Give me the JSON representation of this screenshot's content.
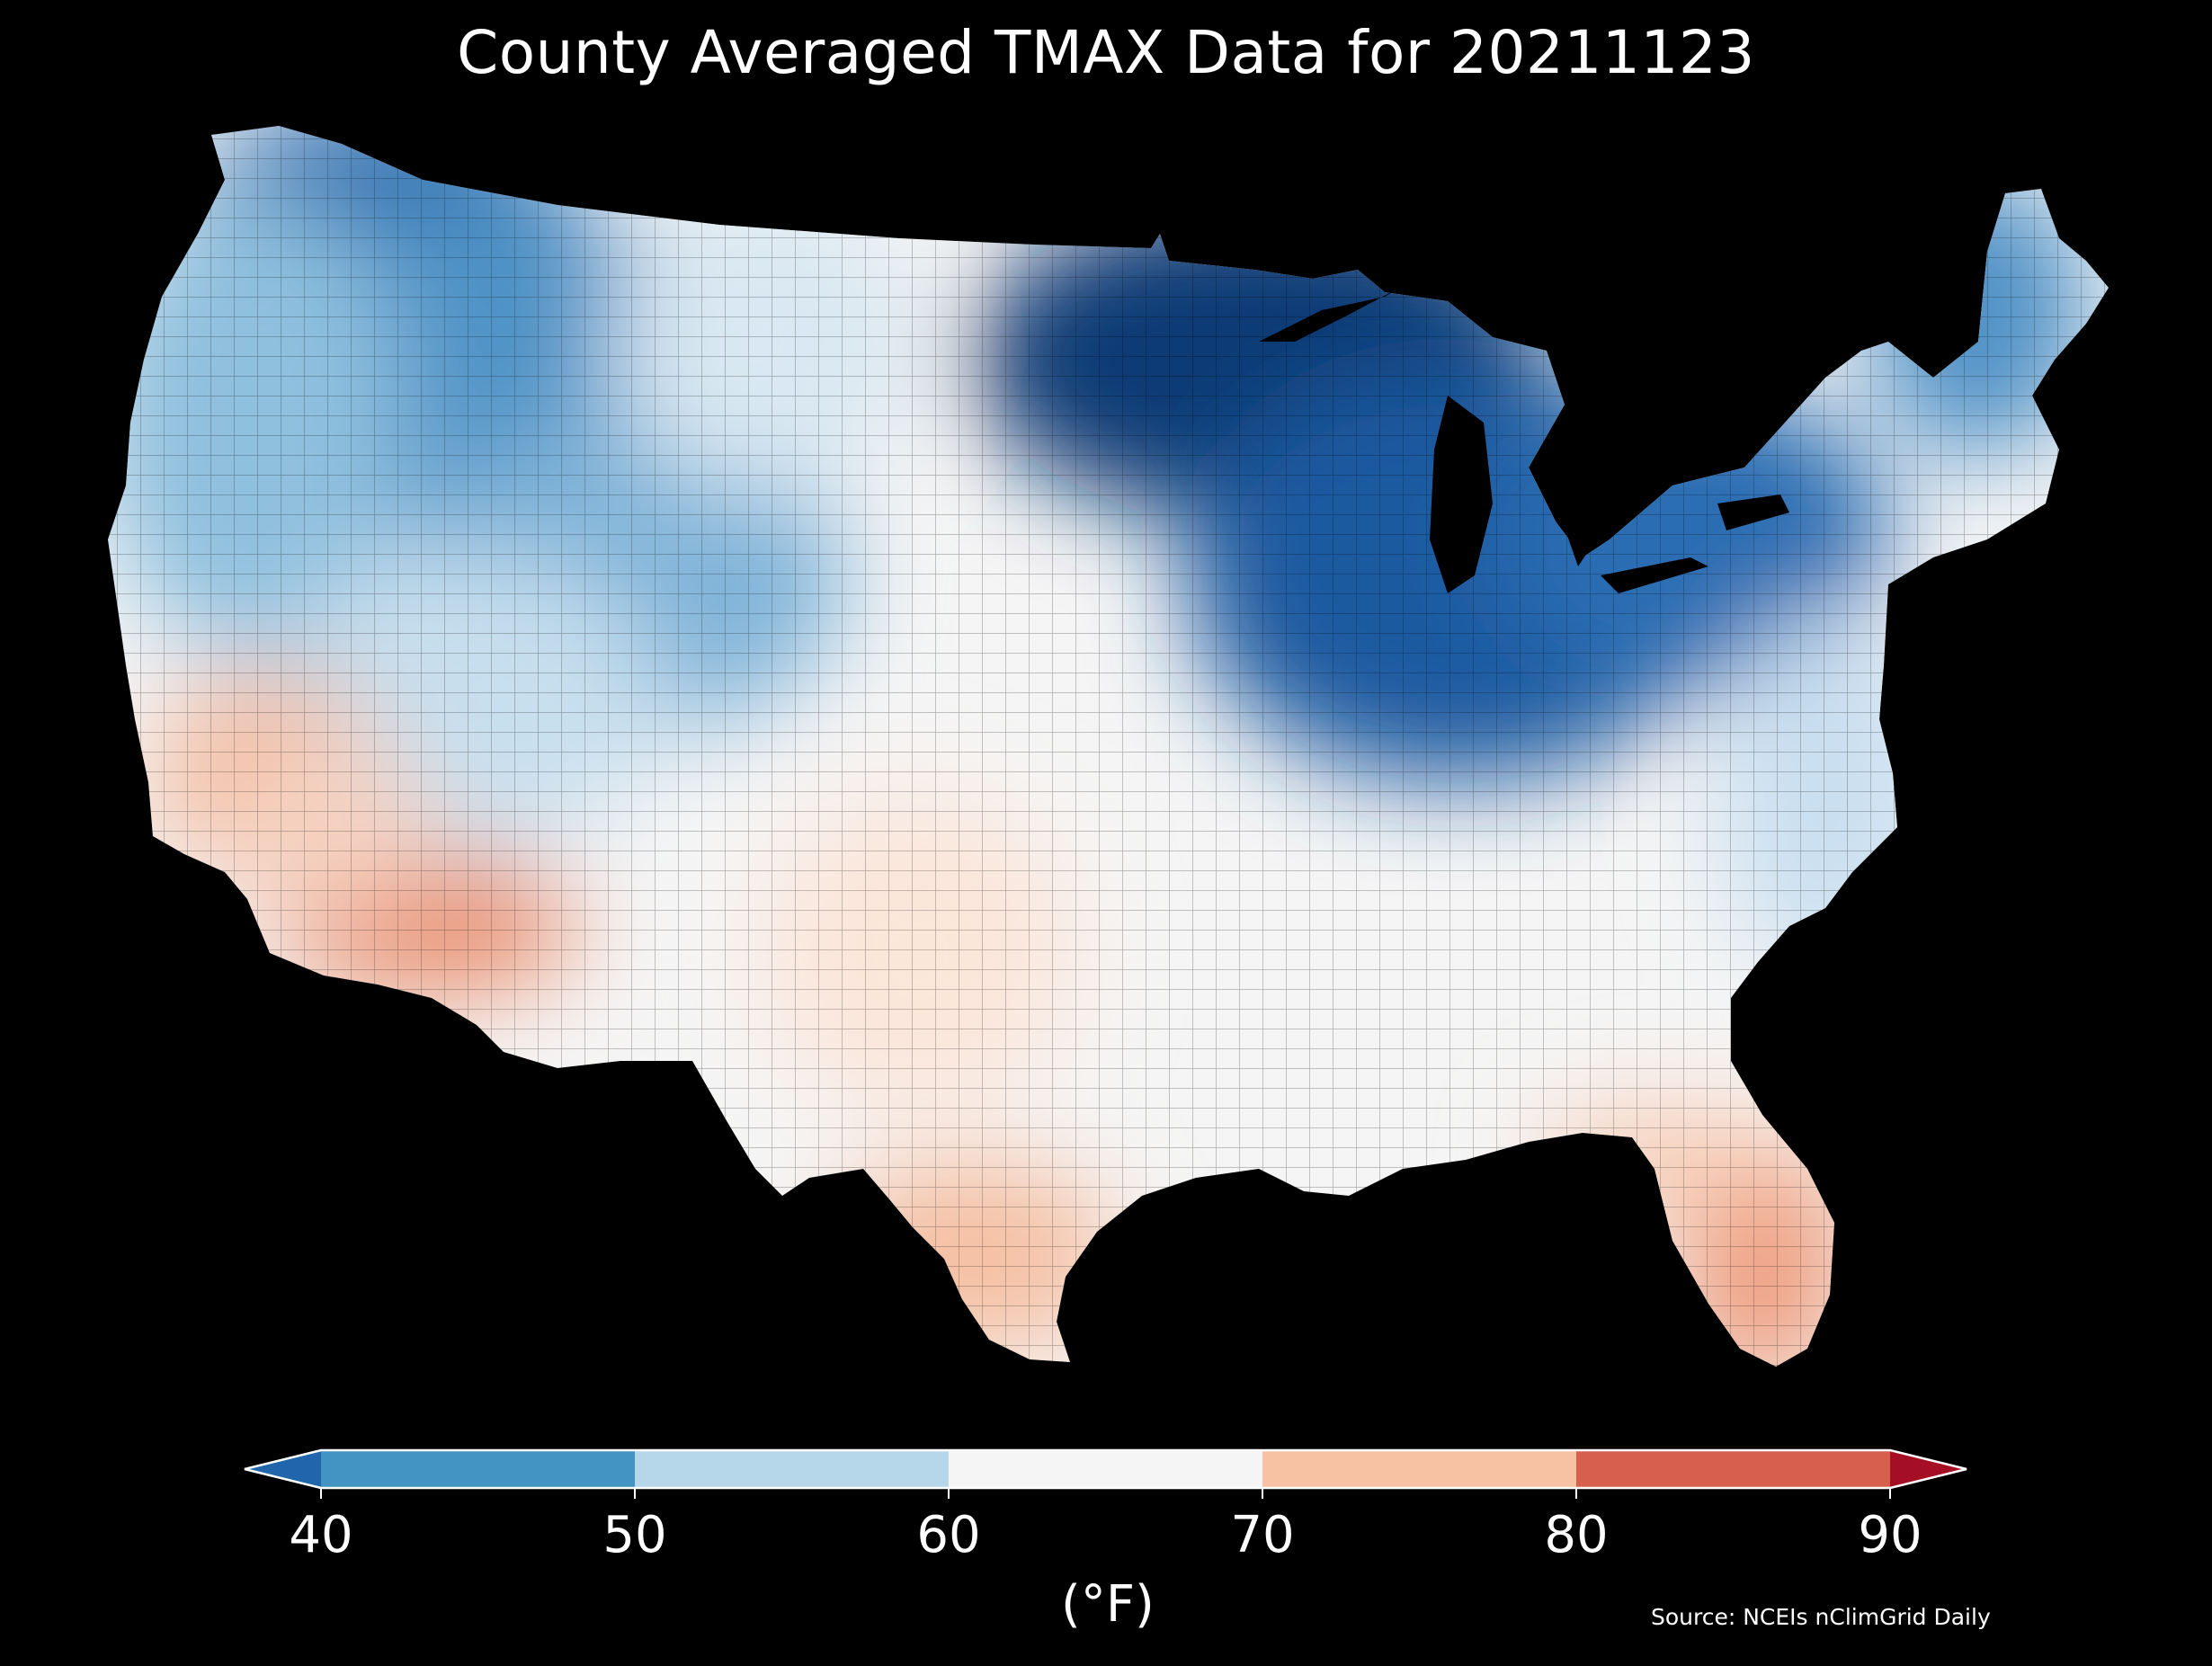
{
  "title": "County Averaged TMAX Data for 20211123",
  "colorbar": {
    "unit_label": "(°F)",
    "ticks": [
      "40",
      "50",
      "60",
      "70",
      "80",
      "90"
    ],
    "bins": [
      {
        "from": "below",
        "to": 40,
        "color": "#2166ac"
      },
      {
        "from": 40,
        "to": 50,
        "color": "#4393c3"
      },
      {
        "from": 50,
        "to": 60,
        "color": "#b6d6ea"
      },
      {
        "from": 60,
        "to": 70,
        "color": "#f5f5f5"
      },
      {
        "from": 70,
        "to": 80,
        "color": "#f7c2a3"
      },
      {
        "from": 80,
        "to": 90,
        "color": "#d6604d"
      },
      {
        "from": 90,
        "to": "above",
        "color": "#a50f26"
      }
    ],
    "extend": "both"
  },
  "source": "Source: NCEIs nClimGrid Daily",
  "map": {
    "region": "Contiguous United States",
    "variable": "TMAX",
    "resolution": "county",
    "background": "#000000",
    "region_temperatures_F": {
      "pacific_northwest": 45,
      "northern_rockies": 42,
      "northern_plains": 58,
      "upper_midwest_great_lakes": 33,
      "ohio_valley": 38,
      "new_england": 45,
      "mid_atlantic_coast": 58,
      "california_coast": 70,
      "southern_california": 76,
      "desert_southwest": 80,
      "great_basin": 55,
      "southern_plains": 68,
      "southeast": 64,
      "florida": 80
    }
  }
}
